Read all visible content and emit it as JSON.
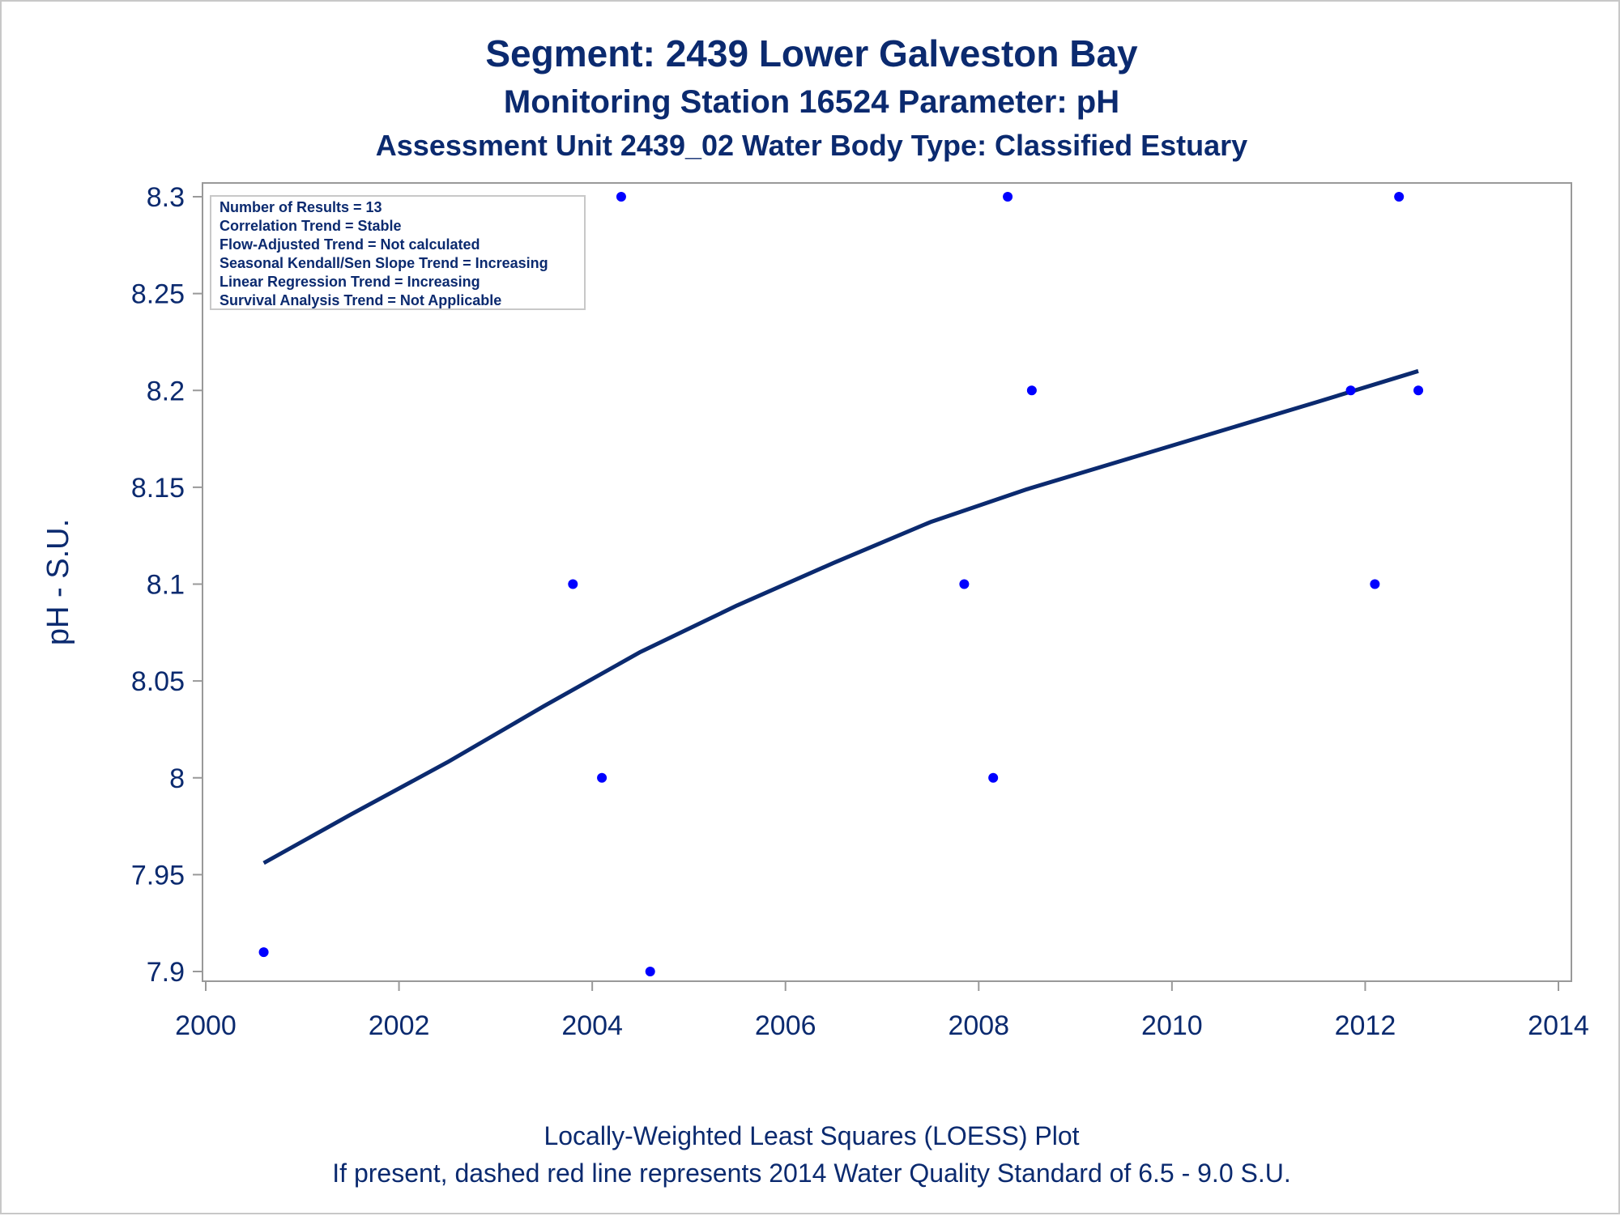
{
  "titles": {
    "line1": "Segment: 2439  Lower Galveston Bay",
    "line2": "Monitoring Station 16524 Parameter: pH",
    "line3": "Assessment Unit 2439_02   Water Body Type: Classified Estuary"
  },
  "stats_box": [
    "Number of Results = 13",
    "Correlation Trend = Stable",
    "Flow-Adjusted Trend = Not calculated",
    "Seasonal Kendall/Sen Slope Trend = Increasing",
    "Linear Regression Trend = Increasing",
    "Survival Analysis Trend = Not Applicable"
  ],
  "footnotes": {
    "line1": "Locally-Weighted Least Squares (LOESS) Plot",
    "line2": "If present, dashed red line represents 2014 Water Quality Standard of 6.5 - 9.0 S.U."
  },
  "colors": {
    "text": "#0b2a6f",
    "points": "#0000ff",
    "loess": "#0b2a6f",
    "axis": "#999999"
  },
  "chart_data": {
    "type": "scatter",
    "xlabel": "",
    "ylabel": "pH - S.U.",
    "xlim": [
      2000,
      2014
    ],
    "ylim": [
      7.9,
      8.3
    ],
    "x_ticks": [
      2000,
      2002,
      2004,
      2006,
      2008,
      2010,
      2012,
      2014
    ],
    "y_ticks": [
      7.9,
      7.95,
      8,
      8.05,
      8.1,
      8.15,
      8.2,
      8.25,
      8.3
    ],
    "y_tick_labels": [
      "7.9",
      "7.95",
      "8",
      "8.05",
      "8.1",
      "8.15",
      "8.2",
      "8.25",
      "8.3"
    ],
    "grid": false,
    "series": [
      {
        "kind": "points",
        "x": [
          2000.6,
          2003.8,
          2004.1,
          2004.3,
          2004.6,
          2007.85,
          2008.15,
          2008.3,
          2008.55,
          2011.85,
          2012.1,
          2012.35,
          2012.55
        ],
        "y": [
          7.91,
          8.1,
          8.0,
          8.3,
          7.9,
          8.1,
          8.0,
          8.3,
          8.2,
          8.2,
          8.1,
          8.3,
          8.2
        ]
      },
      {
        "kind": "loess_line",
        "x": [
          2000.6,
          2001.5,
          2002.5,
          2003.5,
          2004.5,
          2005.5,
          2006.5,
          2007.5,
          2008.5,
          2009.5,
          2010.5,
          2011.5,
          2012.55
        ],
        "y": [
          7.956,
          7.981,
          8.008,
          8.037,
          8.065,
          8.089,
          8.111,
          8.132,
          8.149,
          8.164,
          8.179,
          8.194,
          8.21
        ]
      }
    ]
  }
}
